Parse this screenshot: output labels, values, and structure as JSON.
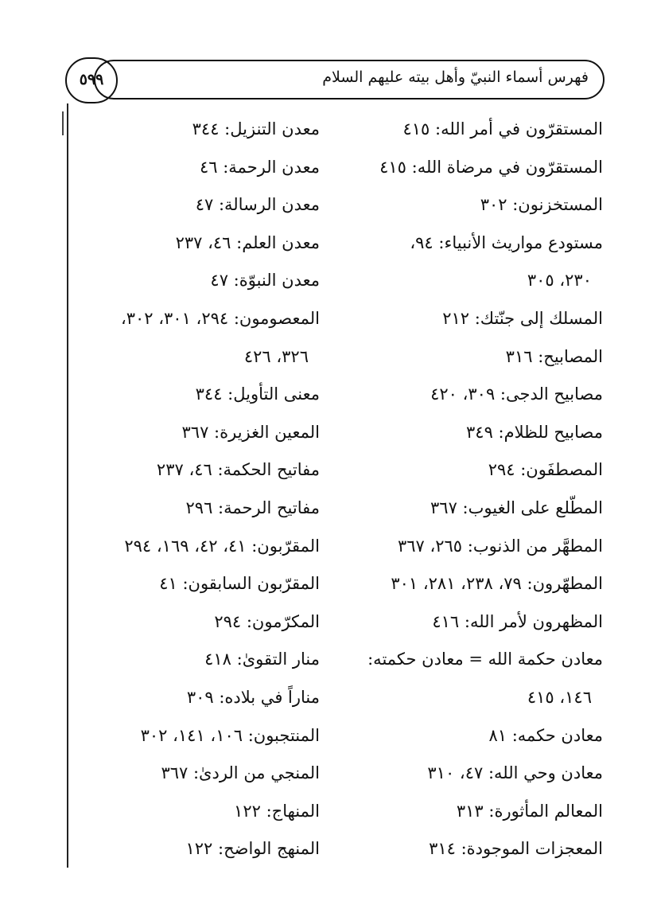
{
  "header": {
    "title": "فهرس أسماء النبيّ وأهل بيته عليهم السلام",
    "page_number": "٥٩٩"
  },
  "columns": {
    "right": [
      {
        "text": "المستقرّون في أمر الله: ٤١٥"
      },
      {
        "text": "المستقرّون في مرضاة الله: ٤١٥"
      },
      {
        "text": "المستخزنون: ٣٠٢"
      },
      {
        "text": "مستودع مواريث الأنبياء: ٩٤،"
      },
      {
        "text": "٢٣٠، ٣٠٥",
        "continuation": true
      },
      {
        "text": "المسلك إلى جنّتك: ٢١٢"
      },
      {
        "text": "المصابيح: ٣١٦"
      },
      {
        "text": "مصابيح الدجى: ٣٠٩، ٤٢٠"
      },
      {
        "text": "مصابيح للظلام: ٣٤٩"
      },
      {
        "text": "المصطفَون: ٢٩٤"
      },
      {
        "text": "المطّلع على الغيوب: ٣٦٧"
      },
      {
        "text": "المطهَّر من الذنوب: ٢٦٥، ٣٦٧"
      },
      {
        "text": "المطهّرون: ٧٩، ٢٣٨، ٢٨١، ٣٠١"
      },
      {
        "text": "المظهرون لأمر الله: ٤١٦"
      },
      {
        "text": "معادن حكمة الله = معادن حكمته:"
      },
      {
        "text": "١٤٦، ٤١٥",
        "continuation": true
      },
      {
        "text": "معادن حكمه: ٨١"
      },
      {
        "text": "معادن وحي الله: ٤٧، ٣١٠"
      },
      {
        "text": "المعالم المأثورة: ٣١٣"
      },
      {
        "text": "المعجزات الموجودة: ٣١٤"
      }
    ],
    "left": [
      {
        "text": "معدن التنزيل: ٣٤٤"
      },
      {
        "text": "معدن الرحمة: ٤٦"
      },
      {
        "text": "معدن الرسالة: ٤٧"
      },
      {
        "text": "معدن العلم: ٤٦، ٢٣٧"
      },
      {
        "text": "معدن النبوّة: ٤٧"
      },
      {
        "text": "المعصومون: ٢٩٤، ٣٠١، ٣٠٢،"
      },
      {
        "text": "٣٢٦، ٤٢٦",
        "continuation": true
      },
      {
        "text": "معنى التأويل: ٣٤٤"
      },
      {
        "text": "المعين الغزيرة: ٣٦٧"
      },
      {
        "text": "مفاتيح الحكمة: ٤٦، ٢٣٧"
      },
      {
        "text": "مفاتيح الرحمة: ٢٩٦"
      },
      {
        "text": "المقرّبون: ٤١، ٤٢، ١٦٩، ٢٩٤"
      },
      {
        "text": "المقرّبون السابقون: ٤١"
      },
      {
        "text": "المكرّمون: ٢٩٤"
      },
      {
        "text": "منار التقوىٰ: ٤١٨"
      },
      {
        "text": "مناراً في بلاده: ٣٠٩"
      },
      {
        "text": "المنتجبون: ١٠٦، ١٤١، ٣٠٢"
      },
      {
        "text": "المنجي من الردىٰ: ٣٦٧"
      },
      {
        "text": "المنهاج: ١٢٢"
      },
      {
        "text": "المنهج الواضح: ١٢٢"
      }
    ]
  }
}
